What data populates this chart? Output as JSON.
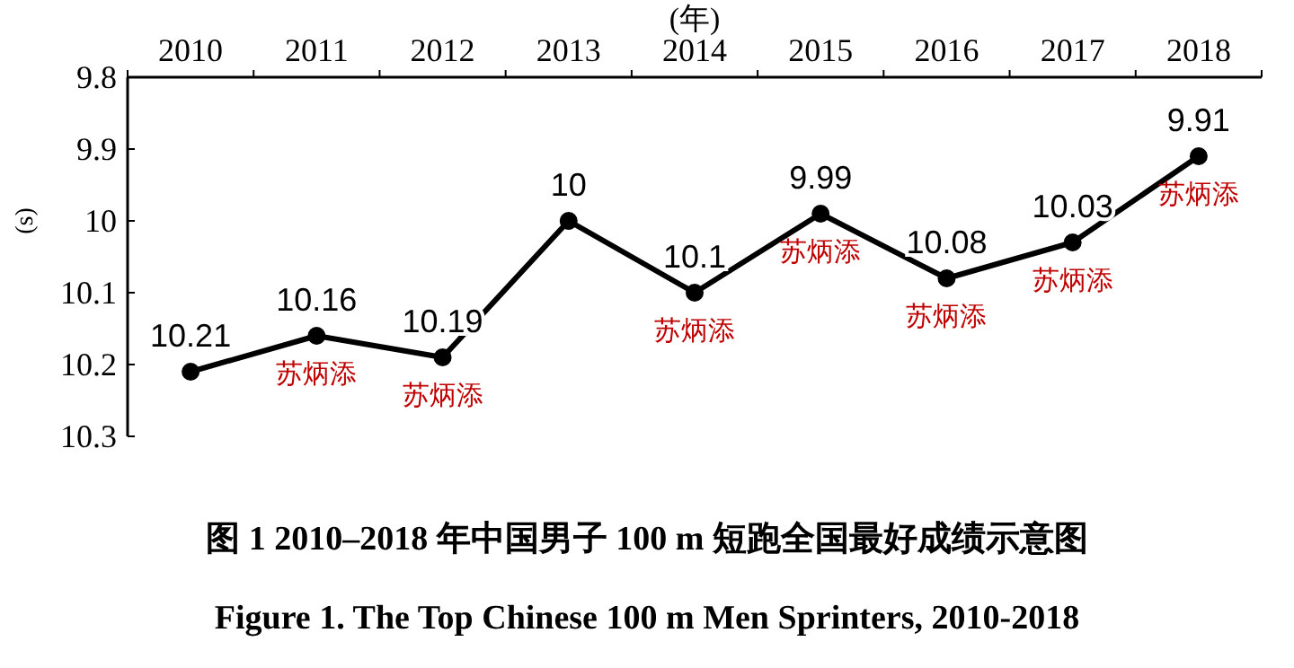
{
  "chart_data": {
    "type": "line",
    "title": "图 1   2010–2018 年中国男子 100 m 短跑全国最好成绩示意图",
    "subtitle": "Figure 1.   The Top Chinese 100 m Men Sprinters, 2010-2018",
    "xlabel": "(年)",
    "ylabel": "(s)",
    "categories": [
      "2010",
      "2011",
      "2012",
      "2013",
      "2014",
      "2015",
      "2016",
      "2017",
      "2018"
    ],
    "series": [
      {
        "color": "#000000",
        "values": [
          10.21,
          10.16,
          10.19,
          10,
          10.1,
          9.99,
          10.08,
          10.03,
          9.91
        ]
      }
    ],
    "ylim": [
      10.3,
      9.8
    ],
    "yticks": [
      9.8,
      9.9,
      10,
      10.1,
      10.2,
      10.3
    ],
    "data_labels": true,
    "marker": "circle",
    "line_style": "solid",
    "grid": false,
    "annotations": [
      {
        "text": "苏炳添",
        "x": "2011",
        "y": 10.16
      },
      {
        "text": "苏炳添",
        "x": "2012",
        "y": 10.19
      },
      {
        "text": "苏炳添",
        "x": "2014",
        "y": 10.1
      },
      {
        "text": "苏炳添",
        "x": "2015",
        "y": 9.99
      },
      {
        "text": "苏炳添",
        "x": "2016",
        "y": 10.08
      },
      {
        "text": "苏炳添",
        "x": "2017",
        "y": 10.03
      },
      {
        "text": "苏炳添",
        "x": "2018",
        "y": 9.91
      }
    ]
  }
}
